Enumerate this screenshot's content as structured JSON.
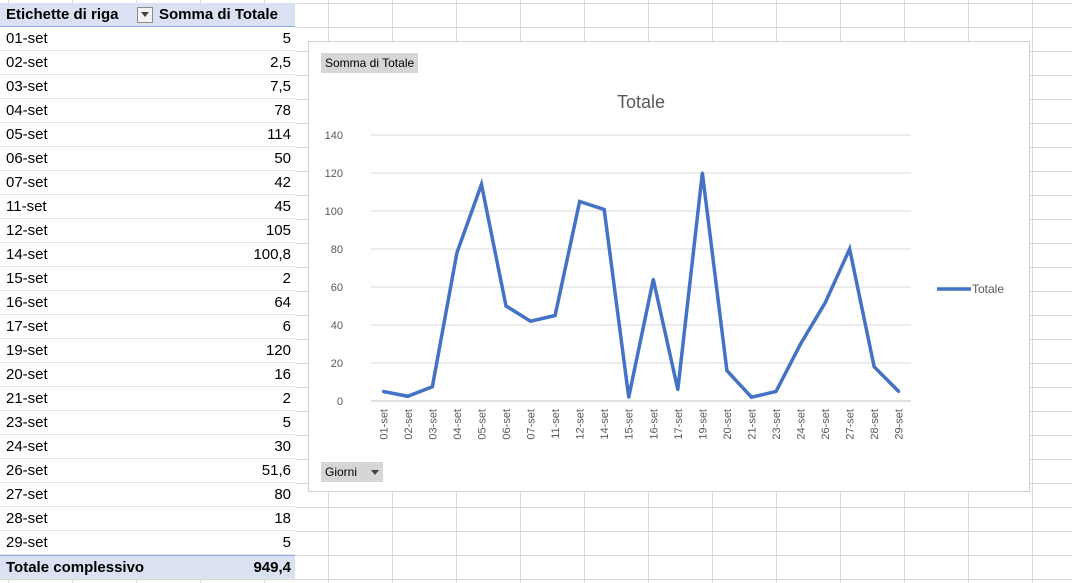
{
  "pivot": {
    "header_label": "Etichette di riga",
    "header_value": "Somma di Totale",
    "rows": [
      {
        "label": "01-set",
        "value": "5"
      },
      {
        "label": "02-set",
        "value": "2,5"
      },
      {
        "label": "03-set",
        "value": "7,5"
      },
      {
        "label": "04-set",
        "value": "78"
      },
      {
        "label": "05-set",
        "value": "114"
      },
      {
        "label": "06-set",
        "value": "50"
      },
      {
        "label": "07-set",
        "value": "42"
      },
      {
        "label": "11-set",
        "value": "45"
      },
      {
        "label": "12-set",
        "value": "105"
      },
      {
        "label": "14-set",
        "value": "100,8"
      },
      {
        "label": "15-set",
        "value": "2"
      },
      {
        "label": "16-set",
        "value": "64"
      },
      {
        "label": "17-set",
        "value": "6"
      },
      {
        "label": "19-set",
        "value": "120"
      },
      {
        "label": "20-set",
        "value": "16"
      },
      {
        "label": "21-set",
        "value": "2"
      },
      {
        "label": "23-set",
        "value": "5"
      },
      {
        "label": "24-set",
        "value": "30"
      },
      {
        "label": "26-set",
        "value": "51,6"
      },
      {
        "label": "27-set",
        "value": "80"
      },
      {
        "label": "28-set",
        "value": "18"
      },
      {
        "label": "29-set",
        "value": "5"
      }
    ],
    "total_label": "Totale complessivo",
    "total_value": "949,4"
  },
  "chart": {
    "value_field_button": "Somma di Totale",
    "axis_field_button": "Giorni"
  },
  "chart_data": {
    "type": "line",
    "title": "Totale",
    "categories": [
      "01-set",
      "02-set",
      "03-set",
      "04-set",
      "05-set",
      "06-set",
      "07-set",
      "11-set",
      "12-set",
      "14-set",
      "15-set",
      "16-set",
      "17-set",
      "19-set",
      "20-set",
      "21-set",
      "23-set",
      "24-set",
      "26-set",
      "27-set",
      "28-set",
      "29-set"
    ],
    "series": [
      {
        "name": "Totale",
        "values": [
          5,
          2.5,
          7.5,
          78,
          114,
          50,
          42,
          45,
          105,
          100.8,
          2,
          64,
          6,
          120,
          16,
          2,
          5,
          30,
          51.6,
          80,
          18,
          5
        ],
        "color": "#4472c4"
      }
    ],
    "ylim": [
      0,
      140
    ],
    "yticks": [
      0,
      20,
      40,
      60,
      80,
      100,
      120,
      140
    ],
    "grid": true,
    "legend": "right"
  }
}
